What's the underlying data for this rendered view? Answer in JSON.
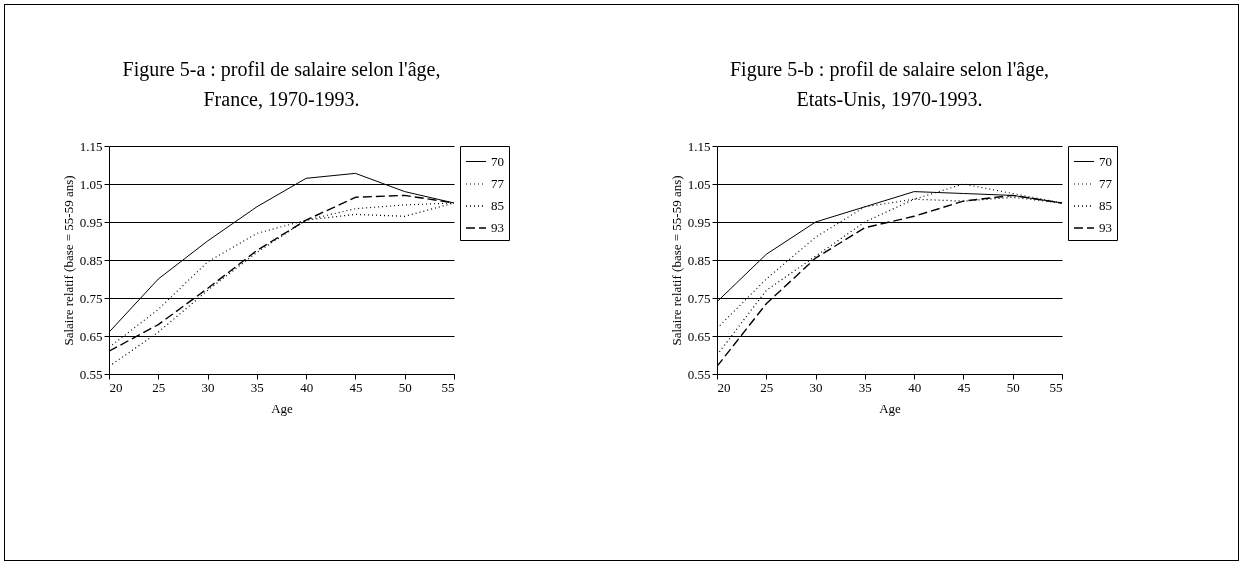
{
  "chart_data": [
    {
      "type": "line",
      "title": [
        "Figure 5-a : profil de salaire selon l'âge,",
        "France, 1970-1993."
      ],
      "xlabel": "Age",
      "ylabel": "Salaire relatif (base = 55-59 ans)",
      "x": [
        20,
        25,
        30,
        35,
        40,
        45,
        50,
        55
      ],
      "xlim": [
        20,
        55
      ],
      "xticks": [
        20,
        25,
        30,
        35,
        40,
        45,
        50,
        55
      ],
      "ylim": [
        0.55,
        1.15
      ],
      "yticks": [
        0.55,
        0.65,
        0.75,
        0.85,
        0.95,
        1.05,
        1.15
      ],
      "grid": "y",
      "legend": "right",
      "marker": "none",
      "series": [
        {
          "name": "70",
          "color": "#000000",
          "line_style": "solid",
          "values": [
            0.66,
            0.8,
            0.9,
            0.99,
            1.065,
            1.078,
            1.03,
            1.0
          ]
        },
        {
          "name": "77",
          "color": "#000000",
          "line_style": "dotted",
          "values": [
            0.62,
            0.72,
            0.845,
            0.92,
            0.955,
            0.985,
            0.995,
            1.0
          ]
        },
        {
          "name": "85",
          "color": "#000000",
          "line_style": "dotted",
          "values": [
            0.57,
            0.66,
            0.77,
            0.87,
            0.955,
            0.97,
            0.965,
            1.0
          ]
        },
        {
          "name": "93",
          "color": "#000000",
          "line_style": "dashed",
          "values": [
            0.61,
            0.68,
            0.775,
            0.875,
            0.955,
            1.015,
            1.02,
            1.0
          ]
        }
      ]
    },
    {
      "type": "line",
      "title": [
        "Figure 5-b : profil de salaire selon l'âge,",
        "Etats-Unis, 1970-1993."
      ],
      "xlabel": "Age",
      "ylabel": "Salaire relatif (base = 55-59 ans)",
      "x": [
        20,
        25,
        30,
        35,
        40,
        45,
        50,
        55
      ],
      "xlim": [
        20,
        55
      ],
      "xticks": [
        20,
        25,
        30,
        35,
        40,
        45,
        50,
        55
      ],
      "ylim": [
        0.55,
        1.15
      ],
      "yticks": [
        0.55,
        0.65,
        0.75,
        0.85,
        0.95,
        1.05,
        1.15
      ],
      "grid": "y",
      "legend": "right",
      "marker": "none",
      "series": [
        {
          "name": "70",
          "color": "#000000",
          "line_style": "solid",
          "values": [
            0.74,
            0.865,
            0.95,
            0.99,
            1.03,
            1.025,
            1.02,
            1.0
          ]
        },
        {
          "name": "77",
          "color": "#000000",
          "line_style": "dotted",
          "values": [
            0.67,
            0.8,
            0.91,
            0.99,
            1.01,
            1.05,
            1.025,
            1.0
          ]
        },
        {
          "name": "85",
          "color": "#000000",
          "line_style": "dotted",
          "values": [
            0.6,
            0.77,
            0.86,
            0.95,
            1.01,
            1.005,
            1.015,
            1.0
          ]
        },
        {
          "name": "93",
          "color": "#000000",
          "line_style": "dashed",
          "values": [
            0.57,
            0.735,
            0.855,
            0.935,
            0.965,
            1.005,
            1.02,
            1.0
          ]
        }
      ]
    }
  ]
}
